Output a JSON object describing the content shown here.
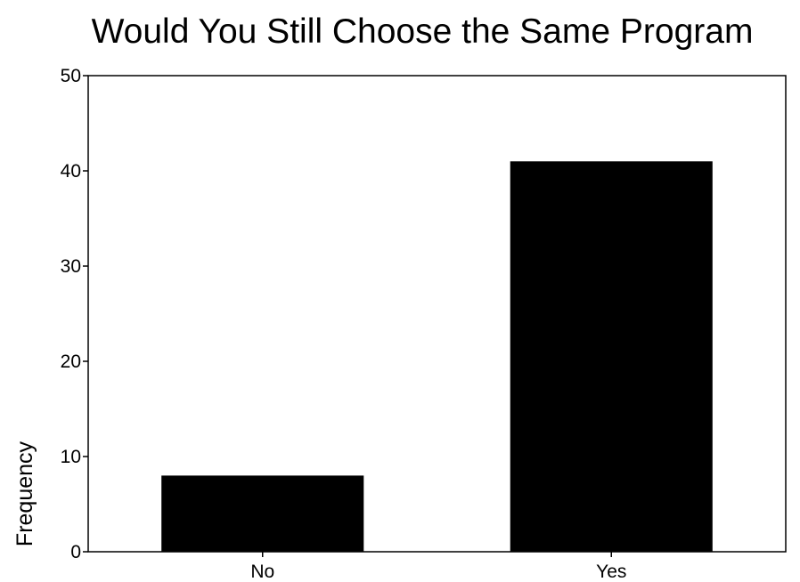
{
  "chart_data": {
    "type": "bar",
    "title": "Would You Still Choose the Same Program",
    "xlabel": "",
    "ylabel": "Frequency",
    "categories": [
      "No",
      "Yes"
    ],
    "values": [
      8,
      41
    ],
    "ylim": [
      0,
      50
    ],
    "yticks": [
      0,
      10,
      20,
      30,
      40,
      50
    ],
    "bar_color": "#000000",
    "grid": false,
    "legend": "none"
  }
}
